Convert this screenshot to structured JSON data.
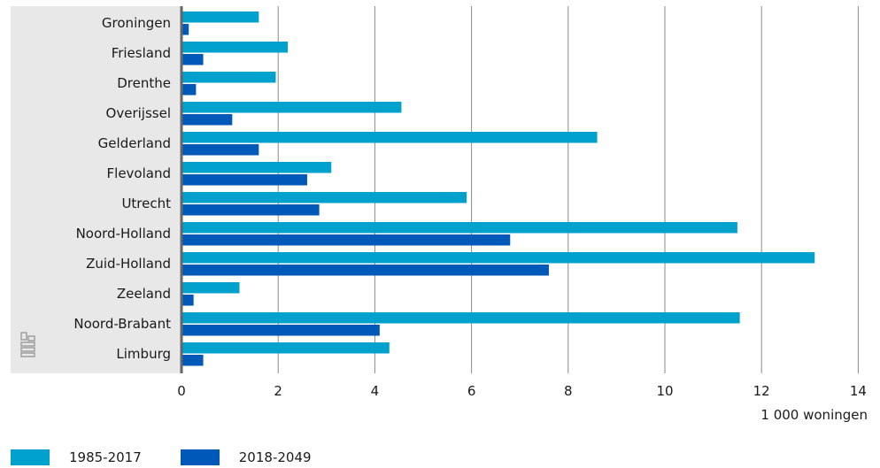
{
  "chart_data": {
    "type": "bar",
    "orientation": "horizontal",
    "categories": [
      "Groningen",
      "Friesland",
      "Drenthe",
      "Overijssel",
      "Gelderland",
      "Flevoland",
      "Utrecht",
      "Noord-Holland",
      "Zuid-Holland",
      "Zeeland",
      "Noord-Brabant",
      "Limburg"
    ],
    "series": [
      {
        "name": "1985-2017",
        "color": "#00a1cd",
        "values": [
          1.6,
          2.2,
          1.95,
          4.55,
          8.6,
          3.1,
          5.9,
          11.5,
          13.1,
          1.2,
          11.55,
          4.3
        ]
      },
      {
        "name": "2018-2049",
        "color": "#0058b8",
        "values": [
          0.15,
          0.45,
          0.3,
          1.05,
          1.6,
          2.6,
          2.85,
          6.8,
          7.6,
          0.25,
          4.1,
          0.45
        ]
      }
    ],
    "x_ticks": [
      "0",
      "2",
      "4",
      "6",
      "8",
      "10",
      "12",
      "14"
    ],
    "xlim": [
      0,
      14
    ],
    "xlabel": "1 000 woningen",
    "grid": true,
    "legend_position": "bottom-left"
  },
  "colors": {
    "band": "#e8e8e8",
    "grid": "#8a8a8a",
    "axis": "#666666",
    "logo": "#9a9a9a"
  }
}
